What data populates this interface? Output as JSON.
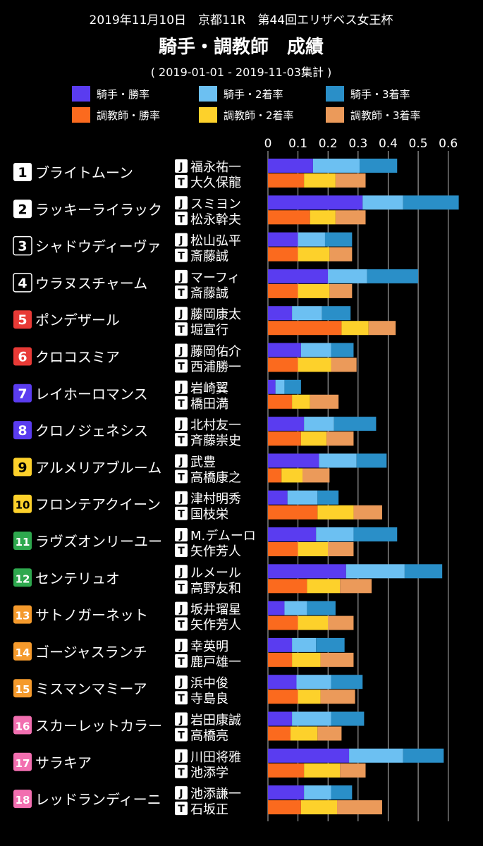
{
  "header": {
    "line1": "2019年11月10日　京都11R　第44回エリザベス女王杯",
    "title": "騎手・調教師　成績",
    "period": "( 2019-01-01 - 2019-11-03集計 )"
  },
  "chart_data": {
    "type": "bar",
    "orientation": "horizontal",
    "stacked": true,
    "xlim": [
      0,
      0.65
    ],
    "xticks": [
      "0",
      "0.1",
      "0.2",
      "0.3",
      "0.4",
      "0.5",
      "0.6"
    ],
    "legend_position": "top",
    "series": [
      {
        "name": "騎手・勝率",
        "color": "#5a3cf0"
      },
      {
        "name": "騎手・2着率",
        "color": "#6cc0f2"
      },
      {
        "name": "騎手・3着率",
        "color": "#2a8fc8"
      },
      {
        "name": "調教師・勝率",
        "color": "#fb6a1e"
      },
      {
        "name": "調教師・2着率",
        "color": "#fdd12b"
      },
      {
        "name": "調教師・3着率",
        "color": "#eb9a5a"
      }
    ],
    "jockey_badge": "J",
    "trainer_badge": "T",
    "horses": [
      {
        "num": "1",
        "badge_bg": "#ffffff",
        "badge_fg": "#000000",
        "name": "ブライトムーン",
        "jockey": "福永祐一",
        "trainer": "大久保龍",
        "jockey_rates": [
          0.15,
          0.305,
          0.43
        ],
        "trainer_rates": [
          0.12,
          0.225,
          0.325
        ]
      },
      {
        "num": "2",
        "badge_bg": "#ffffff",
        "badge_fg": "#000000",
        "name": "ラッキーライラック",
        "jockey": "スミヨン",
        "trainer": "松永幹夫",
        "jockey_rates": [
          0.315,
          0.45,
          0.635
        ],
        "trainer_rates": [
          0.14,
          0.225,
          0.325
        ]
      },
      {
        "num": "3",
        "badge_bg": "#000000",
        "badge_fg": "#ffffff",
        "name": "シャドウディーヴァ",
        "jockey": "松山弘平",
        "trainer": "斎藤誠",
        "jockey_rates": [
          0.1,
          0.19,
          0.28
        ],
        "trainer_rates": [
          0.1,
          0.205,
          0.28
        ]
      },
      {
        "num": "4",
        "badge_bg": "#000000",
        "badge_fg": "#ffffff",
        "name": "ウラヌスチャーム",
        "jockey": "マーフィ",
        "trainer": "斎藤誠",
        "jockey_rates": [
          0.2,
          0.33,
          0.5
        ],
        "trainer_rates": [
          0.1,
          0.205,
          0.28
        ]
      },
      {
        "num": "5",
        "badge_bg": "#e83a36",
        "badge_fg": "#ffffff",
        "name": "ポンデザール",
        "jockey": "藤岡康太",
        "trainer": "堀宣行",
        "jockey_rates": [
          0.08,
          0.18,
          0.275
        ],
        "trainer_rates": [
          0.245,
          0.335,
          0.425
        ]
      },
      {
        "num": "6",
        "badge_bg": "#e83a36",
        "badge_fg": "#ffffff",
        "name": "クロコスミア",
        "jockey": "藤岡佑介",
        "trainer": "西浦勝一",
        "jockey_rates": [
          0.11,
          0.21,
          0.285
        ],
        "trainer_rates": [
          0.1,
          0.21,
          0.295
        ]
      },
      {
        "num": "7",
        "badge_bg": "#5a3cf0",
        "badge_fg": "#ffffff",
        "name": "レイホーロマンス",
        "jockey": "岩崎翼",
        "trainer": "橋田満",
        "jockey_rates": [
          0.025,
          0.055,
          0.11
        ],
        "trainer_rates": [
          0.08,
          0.14,
          0.235
        ]
      },
      {
        "num": "8",
        "badge_bg": "#5a3cf0",
        "badge_fg": "#ffffff",
        "name": "クロノジェネシス",
        "jockey": "北村友一",
        "trainer": "斉藤崇史",
        "jockey_rates": [
          0.12,
          0.22,
          0.36
        ],
        "trainer_rates": [
          0.11,
          0.195,
          0.285
        ]
      },
      {
        "num": "9",
        "badge_bg": "#fdd12b",
        "badge_fg": "#000000",
        "name": "アルメリアブルーム",
        "jockey": "武豊",
        "trainer": "高橋康之",
        "jockey_rates": [
          0.17,
          0.295,
          0.395
        ],
        "trainer_rates": [
          0.045,
          0.115,
          0.205
        ]
      },
      {
        "num": "10",
        "badge_bg": "#fdd12b",
        "badge_fg": "#000000",
        "name": "フロンテアクイーン",
        "jockey": "津村明秀",
        "trainer": "国枝栄",
        "jockey_rates": [
          0.065,
          0.165,
          0.235
        ],
        "trainer_rates": [
          0.165,
          0.285,
          0.38
        ]
      },
      {
        "num": "11",
        "badge_bg": "#2ea84e",
        "badge_fg": "#ffffff",
        "name": "ラヴズオンリーユー",
        "jockey": "M.デムーロ",
        "trainer": "矢作芳人",
        "jockey_rates": [
          0.16,
          0.285,
          0.43
        ],
        "trainer_rates": [
          0.1,
          0.2,
          0.285
        ]
      },
      {
        "num": "12",
        "badge_bg": "#2ea84e",
        "badge_fg": "#ffffff",
        "name": "センテリュオ",
        "jockey": "ルメール",
        "trainer": "高野友和",
        "jockey_rates": [
          0.26,
          0.455,
          0.58
        ],
        "trainer_rates": [
          0.13,
          0.24,
          0.345
        ]
      },
      {
        "num": "13",
        "badge_bg": "#f59a2c",
        "badge_fg": "#ffffff",
        "name": "サトノガーネット",
        "jockey": "坂井瑠星",
        "trainer": "矢作芳人",
        "jockey_rates": [
          0.055,
          0.13,
          0.225
        ],
        "trainer_rates": [
          0.1,
          0.2,
          0.285
        ]
      },
      {
        "num": "14",
        "badge_bg": "#f59a2c",
        "badge_fg": "#ffffff",
        "name": "ゴージャスランチ",
        "jockey": "幸英明",
        "trainer": "鹿戸雄一",
        "jockey_rates": [
          0.08,
          0.16,
          0.255
        ],
        "trainer_rates": [
          0.08,
          0.175,
          0.285
        ]
      },
      {
        "num": "15",
        "badge_bg": "#f59a2c",
        "badge_fg": "#ffffff",
        "name": "ミスマンマミーア",
        "jockey": "浜中俊",
        "trainer": "寺島良",
        "jockey_rates": [
          0.095,
          0.21,
          0.315
        ],
        "trainer_rates": [
          0.1,
          0.175,
          0.29
        ]
      },
      {
        "num": "16",
        "badge_bg": "#f26fb0",
        "badge_fg": "#ffffff",
        "name": "スカーレットカラー",
        "jockey": "岩田康誠",
        "trainer": "高橋亮",
        "jockey_rates": [
          0.08,
          0.21,
          0.32
        ],
        "trainer_rates": [
          0.075,
          0.165,
          0.245
        ]
      },
      {
        "num": "17",
        "badge_bg": "#f26fb0",
        "badge_fg": "#ffffff",
        "name": "サラキア",
        "jockey": "川田将雅",
        "trainer": "池添学",
        "jockey_rates": [
          0.27,
          0.45,
          0.585
        ],
        "trainer_rates": [
          0.12,
          0.24,
          0.325
        ]
      },
      {
        "num": "18",
        "badge_bg": "#f26fb0",
        "badge_fg": "#ffffff",
        "name": "レッドランディーニ",
        "jockey": "池添謙一",
        "trainer": "石坂正",
        "jockey_rates": [
          0.12,
          0.21,
          0.28
        ],
        "trainer_rates": [
          0.11,
          0.23,
          0.38
        ]
      }
    ]
  }
}
